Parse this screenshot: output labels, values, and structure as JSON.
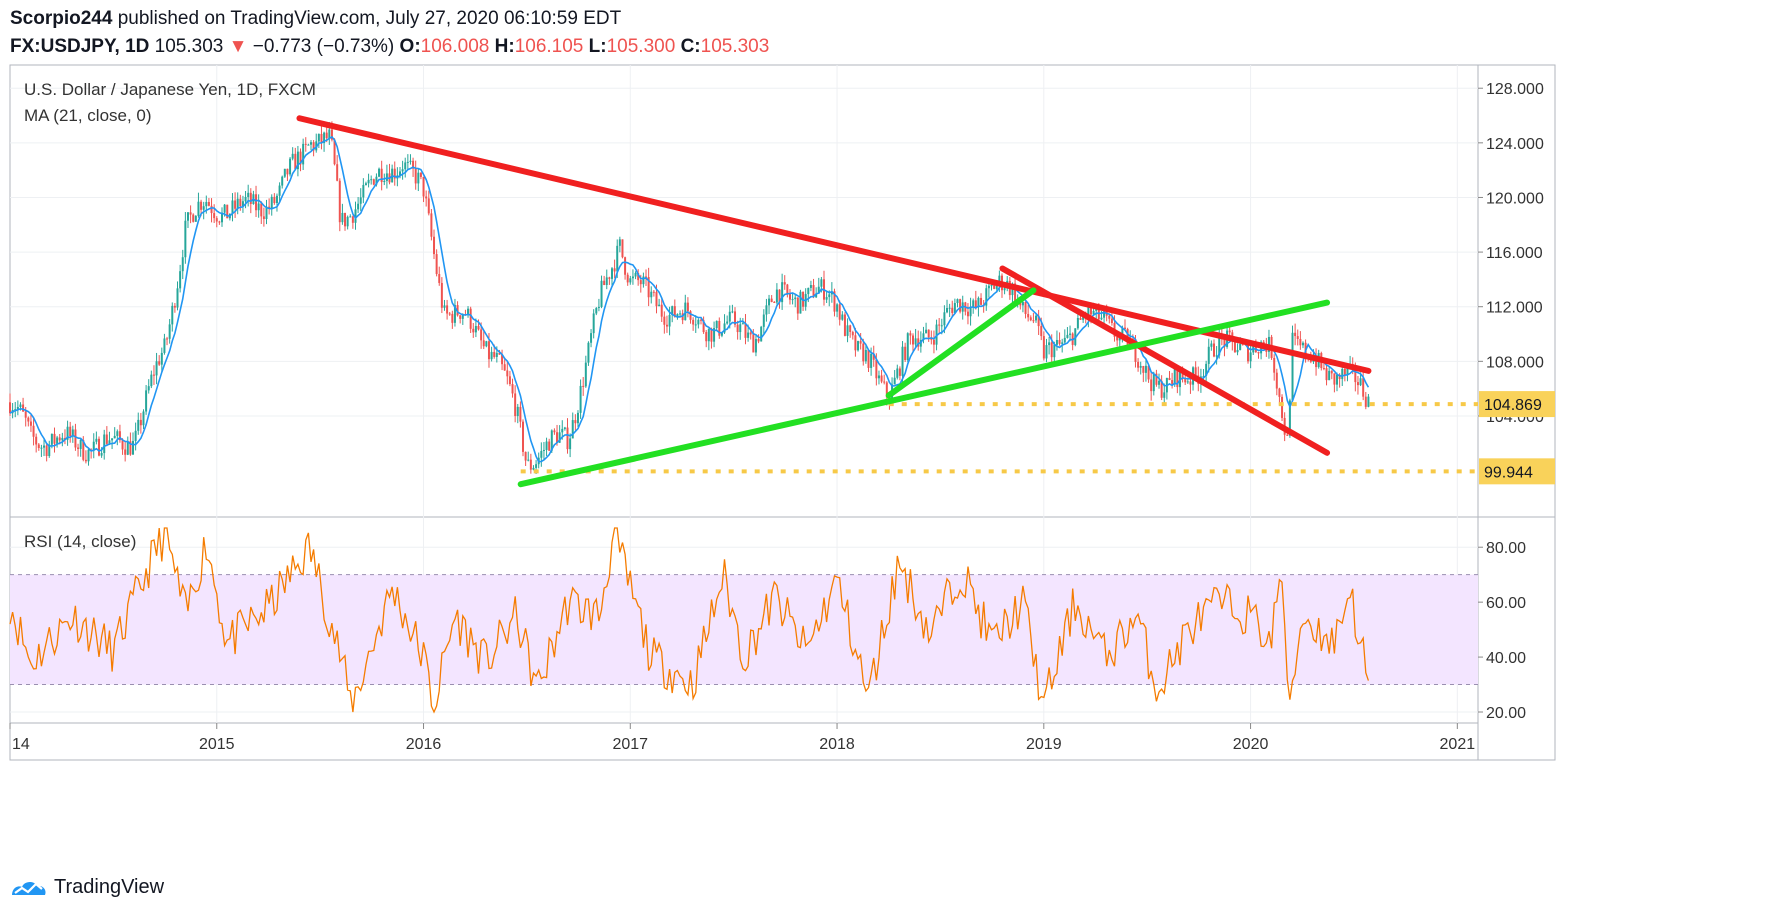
{
  "header": {
    "author": "Scorpio244",
    "published_text": "published on TradingView.com, July 27, 2020 06:10:59 EDT",
    "symbol": "FX:USDJPY, 1D",
    "last": "105.303",
    "change_arrow": "▼",
    "change": "−0.773 (−0.73%)",
    "o_label": "O:",
    "o": "106.008",
    "h_label": "H:",
    "h": "106.105",
    "l_label": "L:",
    "l": "105.300",
    "c_label": "C:",
    "c": "105.303"
  },
  "legend": {
    "title": "U.S. Dollar / Japanese Yen, 1D, FXCM",
    "ma": "MA (21, close, 0)",
    "rsi": "RSI (14, close)"
  },
  "brand": {
    "name": "TradingView",
    "icon": "tradingview-logo-icon"
  },
  "colors": {
    "candle_up": "#26a69a",
    "candle_down": "#ef5350",
    "ma": "#2196f3",
    "trend_red": "#f02020",
    "trend_green": "#22e022",
    "level": "#f7c948",
    "rsi": "#f57c00",
    "rsi_band": "#f3e5ff"
  },
  "chart_data": [
    {
      "type": "candlestick",
      "title": "U.S. Dollar / Japanese Yen, 1D, FXCM",
      "x_ticks": [
        "14",
        "2015",
        "2016",
        "2017",
        "2018",
        "2019",
        "2020",
        "2021"
      ],
      "y_ticks": [
        "128.000",
        "124.000",
        "120.000",
        "116.000",
        "112.000",
        "108.000",
        "104.000"
      ],
      "ylim": [
        96.6,
        129.7
      ],
      "xlim": [
        2014.0,
        2021.1
      ],
      "series": [
        {
          "name": "price",
          "x": [
            2014.0,
            2014.1,
            2014.3,
            2014.5,
            2014.6,
            2014.75,
            2014.85,
            2014.95,
            2015.1,
            2015.3,
            2015.45,
            2015.55,
            2015.6,
            2015.68,
            2015.8,
            2015.9,
            2016.0,
            2016.1,
            2016.2,
            2016.35,
            2016.45,
            2016.5,
            2016.58,
            2016.7,
            2016.85,
            2016.95,
            2017.0,
            2017.1,
            2017.3,
            2017.45,
            2017.6,
            2017.7,
            2017.85,
            2018.0,
            2018.1,
            2018.25,
            2018.35,
            2018.5,
            2018.7,
            2018.85,
            2018.95,
            2019.0,
            2019.1,
            2019.3,
            2019.45,
            2019.6,
            2019.68,
            2019.8,
            2019.95,
            2020.05,
            2020.1,
            2020.18,
            2020.2,
            2020.27,
            2020.35,
            2020.45,
            2020.57
          ],
          "y": [
            105.0,
            102.5,
            102.0,
            101.8,
            102.5,
            109.0,
            118.0,
            119.5,
            119.0,
            120.0,
            124.5,
            123.8,
            118.0,
            120.0,
            121.5,
            123.0,
            120.0,
            112.0,
            111.0,
            108.5,
            104.0,
            100.8,
            101.5,
            102.5,
            112.0,
            117.0,
            114.0,
            112.5,
            111.0,
            110.5,
            110.0,
            112.5,
            113.0,
            112.5,
            108.5,
            106.0,
            109.0,
            111.0,
            112.8,
            113.5,
            111.0,
            108.0,
            110.0,
            111.5,
            108.0,
            106.0,
            106.5,
            108.5,
            109.5,
            108.8,
            108.5,
            102.5,
            110.0,
            108.0,
            107.5,
            107.0,
            105.3
          ]
        },
        {
          "name": "MA (21, close, 0)"
        }
      ],
      "trendlines": [
        {
          "color": "red",
          "from": [
            2015.4,
            125.8
          ],
          "to": [
            2020.57,
            107.3
          ]
        },
        {
          "color": "red",
          "from": [
            2018.8,
            114.8
          ],
          "to": [
            2020.37,
            101.3
          ]
        },
        {
          "color": "green",
          "from": [
            2016.47,
            99.0
          ],
          "to": [
            2020.37,
            112.3
          ]
        },
        {
          "color": "green",
          "from": [
            2018.25,
            105.5
          ],
          "to": [
            2018.95,
            113.2
          ]
        }
      ],
      "price_levels": [
        {
          "label": "104.869",
          "value": 104.869
        },
        {
          "label": "99.944",
          "value": 99.944
        }
      ]
    },
    {
      "type": "line",
      "title": "RSI (14, close)",
      "y_ticks": [
        "80.00",
        "60.00",
        "40.00",
        "20.00"
      ],
      "ylim": [
        16.0,
        91.0
      ],
      "band": [
        30,
        70
      ],
      "series": [
        {
          "name": "RSI (14, close)",
          "x": [
            2014.0,
            2014.1,
            2014.3,
            2014.5,
            2014.6,
            2014.7,
            2014.75,
            2014.85,
            2014.95,
            2015.05,
            2015.25,
            2015.45,
            2015.6,
            2015.65,
            2015.85,
            2016.0,
            2016.05,
            2016.15,
            2016.3,
            2016.45,
            2016.55,
            2016.7,
            2016.85,
            2016.92,
            2017.0,
            2017.1,
            2017.3,
            2017.45,
            2017.55,
            2017.7,
            2017.85,
            2018.0,
            2018.1,
            2018.15,
            2018.3,
            2018.45,
            2018.6,
            2018.75,
            2018.9,
            2019.0,
            2019.15,
            2019.3,
            2019.45,
            2019.55,
            2019.7,
            2019.85,
            2020.0,
            2020.1,
            2020.15,
            2020.18,
            2020.25,
            2020.4,
            2020.48,
            2020.57
          ],
          "y": [
            60,
            38,
            55,
            42,
            60,
            78,
            85,
            55,
            82,
            45,
            58,
            80,
            40,
            22,
            65,
            40,
            22,
            55,
            38,
            55,
            28,
            60,
            55,
            85,
            65,
            40,
            30,
            70,
            40,
            62,
            42,
            68,
            40,
            25,
            75,
            48,
            72,
            45,
            60,
            22,
            60,
            40,
            55,
            28,
            50,
            60,
            55,
            45,
            75,
            20,
            55,
            45,
            65,
            30
          ]
        }
      ]
    }
  ]
}
